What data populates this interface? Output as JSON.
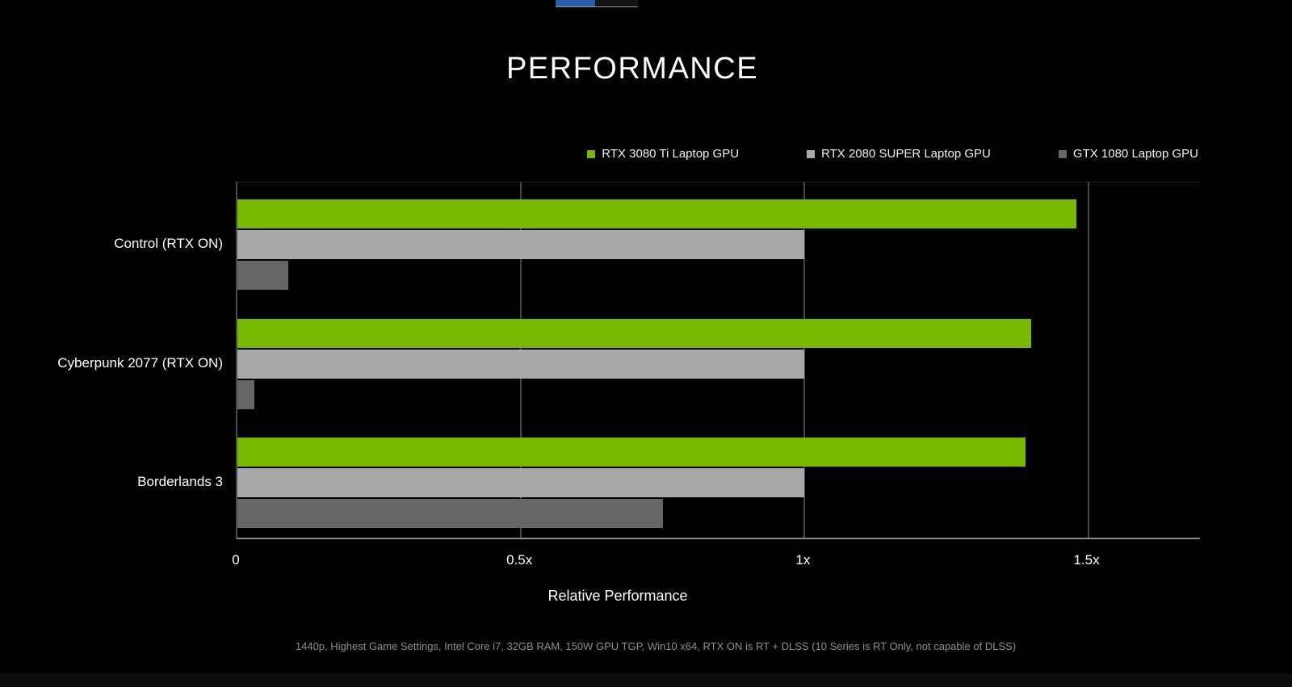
{
  "title": "PERFORMANCE",
  "legend": {
    "items": [
      {
        "label": "RTX 3080 Ti Laptop GPU",
        "color": "#76b900"
      },
      {
        "label": "RTX 2080 SUPER Laptop GPU",
        "color": "#a9a9a9"
      },
      {
        "label": "GTX 1080 Laptop GPU",
        "color": "#666666"
      }
    ]
  },
  "chart_data": {
    "type": "bar",
    "orientation": "horizontal",
    "title": "PERFORMANCE",
    "categories": [
      "Control (RTX ON)",
      "Cyberpunk 2077 (RTX ON)",
      "Borderlands 3"
    ],
    "series": [
      {
        "name": "RTX 3080 Ti Laptop GPU",
        "color": "#76b900",
        "values": [
          1.48,
          1.4,
          1.39
        ]
      },
      {
        "name": "RTX 2080 SUPER Laptop GPU",
        "color": "#a9a9a9",
        "values": [
          1.0,
          1.0,
          1.0
        ]
      },
      {
        "name": "GTX 1080 Laptop GPU",
        "color": "#666666",
        "values": [
          0.09,
          0.03,
          0.75
        ]
      }
    ],
    "xlabel": "Relative Performance",
    "ylabel": "",
    "xlim": [
      0,
      1.7
    ],
    "xticks": [
      {
        "value": 0,
        "label": "0"
      },
      {
        "value": 0.5,
        "label": "0.5x"
      },
      {
        "value": 1,
        "label": "1x"
      },
      {
        "value": 1.5,
        "label": "1.5x"
      }
    ],
    "grid": true,
    "legend_position": "top-right"
  },
  "footnote": "1440p, Highest Game Settings, Intel Core i7, 32GB RAM, 150W GPU TGP, Win10 x64, RTX ON is RT + DLSS (10 Series is RT Only, not capable of DLSS)",
  "colors": {
    "background": "#000000",
    "gridline": "#454545",
    "axis_line": "#8a8a8a",
    "left_axis_line": "#4a4a4a",
    "text": "#ffffff",
    "footnote_text": "#8f8f8f",
    "nvidia_green": "#76b900"
  },
  "top_artifact": {
    "fill_color": "#2b5cad",
    "track_color": "#141414",
    "underline_color": "#9a9a9a"
  }
}
